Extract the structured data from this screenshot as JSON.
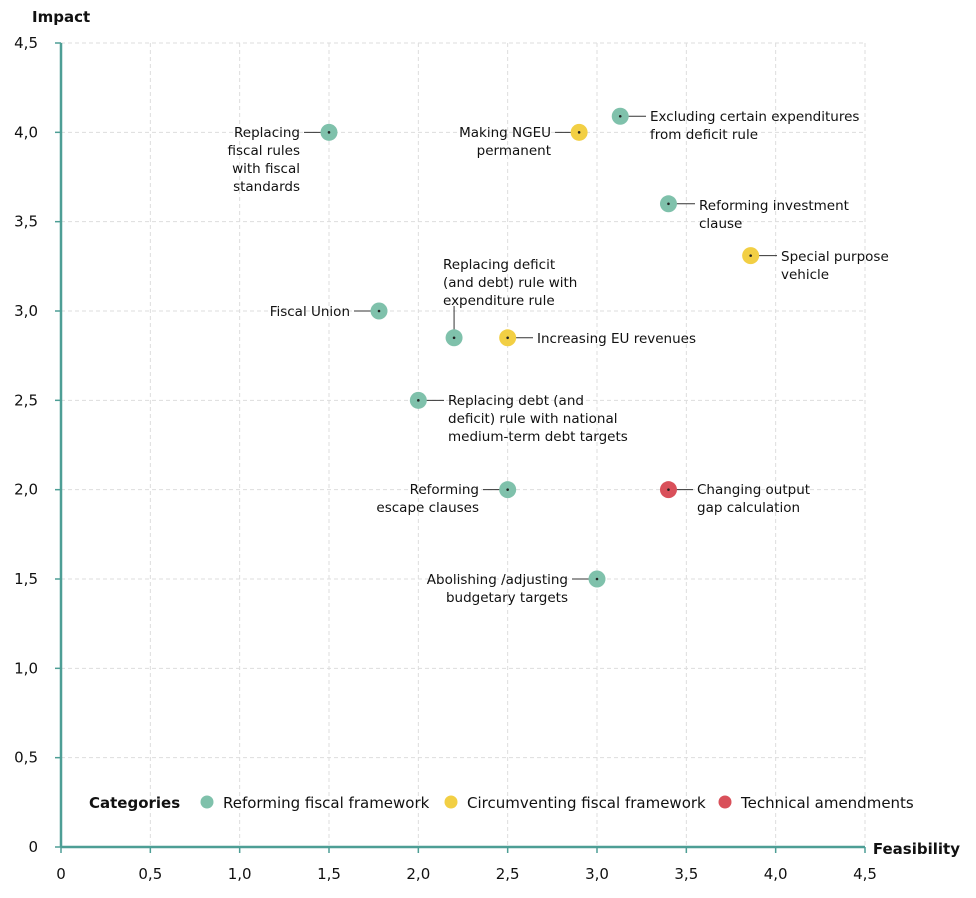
{
  "chart_data": {
    "type": "scatter",
    "xlabel": "Feasibility",
    "ylabel": "Impact",
    "xlim": [
      0,
      4.5
    ],
    "ylim": [
      0,
      4.5
    ],
    "x_ticks": [
      "0",
      "0,5",
      "1,0",
      "1,5",
      "2,0",
      "2,5",
      "3,0",
      "3,5",
      "4,0",
      "4,5"
    ],
    "y_ticks": [
      "0",
      "0,5",
      "1,0",
      "1,5",
      "2,0",
      "2,5",
      "3,0",
      "3,5",
      "4,0",
      "4,5"
    ],
    "grid": true,
    "legend": {
      "title": "Categories",
      "placement": "bottom",
      "items": [
        {
          "category": "reform",
          "label": "Reforming fiscal framework"
        },
        {
          "category": "circumvent",
          "label": "Circumventing fiscal framework"
        },
        {
          "category": "technical",
          "label": "Technical amendments"
        }
      ]
    },
    "colors": {
      "reform": "#7fc1ab",
      "circumvent": "#f2cf44",
      "technical": "#d9505a",
      "axis": "#4d9e95",
      "grid": "#dddddd"
    },
    "points": [
      {
        "x": 1.5,
        "y": 4.0,
        "category": "reform",
        "label": [
          "Replacing",
          "fiscal rules",
          "with fiscal",
          "standards"
        ]
      },
      {
        "x": 2.9,
        "y": 4.0,
        "category": "circumvent",
        "label": [
          "Making NGEU",
          "permanent"
        ]
      },
      {
        "x": 3.13,
        "y": 4.09,
        "category": "reform",
        "label": [
          "Excluding certain expenditures",
          "from deficit rule"
        ]
      },
      {
        "x": 3.4,
        "y": 3.6,
        "category": "reform",
        "label": [
          "Reforming investment",
          "clause"
        ]
      },
      {
        "x": 3.86,
        "y": 3.31,
        "category": "circumvent",
        "label": [
          "Special purpose",
          "vehicle"
        ]
      },
      {
        "x": 1.78,
        "y": 3.0,
        "category": "reform",
        "label": [
          "Fiscal Union"
        ]
      },
      {
        "x": 2.2,
        "y": 2.85,
        "category": "reform",
        "label": [
          "Replacing deficit",
          "(and debt) rule with",
          "expenditure rule"
        ]
      },
      {
        "x": 2.5,
        "y": 2.85,
        "category": "circumvent",
        "label": [
          "Increasing EU revenues"
        ]
      },
      {
        "x": 2.0,
        "y": 2.5,
        "category": "reform",
        "label": [
          "Replacing debt (and",
          "deficit) rule with national",
          "medium-term debt targets"
        ]
      },
      {
        "x": 2.5,
        "y": 2.0,
        "category": "reform",
        "label": [
          "Reforming",
          "escape clauses"
        ]
      },
      {
        "x": 3.4,
        "y": 2.0,
        "category": "technical",
        "label": [
          "Changing output",
          "gap calculation"
        ]
      },
      {
        "x": 3.0,
        "y": 1.5,
        "category": "reform",
        "label": [
          "Abolishing /adjusting",
          "budgetary targets"
        ]
      }
    ]
  }
}
